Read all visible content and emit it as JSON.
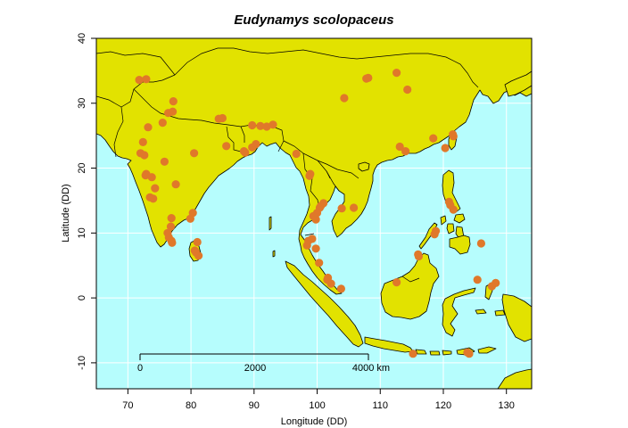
{
  "chart_data": {
    "type": "scatter",
    "title": "Eudynamys scolopaceus",
    "xlabel": "Longitude (DD)",
    "ylabel": "Latitude (DD)",
    "xlim": [
      65,
      134
    ],
    "ylim": [
      -14,
      40
    ],
    "xticks": [
      70,
      80,
      90,
      100,
      110,
      120,
      130
    ],
    "yticks": [
      -10,
      0,
      10,
      20,
      30,
      40
    ],
    "grid": true,
    "colors": {
      "ocean": "#b6fdfd",
      "land": "#e2e200",
      "points": "#e0782a",
      "border": "#000000",
      "grid": "#ffffff"
    },
    "scalebar": {
      "labels": [
        "0",
        "2000",
        "4000 km"
      ]
    },
    "points": [
      [
        71.8,
        33.6
      ],
      [
        72.9,
        33.7
      ],
      [
        72.0,
        22.3
      ],
      [
        72.6,
        22.0
      ],
      [
        72.9,
        19.1
      ],
      [
        72.8,
        18.9
      ],
      [
        73.2,
        26.3
      ],
      [
        72.4,
        24.0
      ],
      [
        73.8,
        18.6
      ],
      [
        73.5,
        15.5
      ],
      [
        74.0,
        15.3
      ],
      [
        74.3,
        16.9
      ],
      [
        75.5,
        27.0
      ],
      [
        75.8,
        21.0
      ],
      [
        76.4,
        28.5
      ],
      [
        77.1,
        28.7
      ],
      [
        77.2,
        30.3
      ],
      [
        77.6,
        17.5
      ],
      [
        76.9,
        12.3
      ],
      [
        76.8,
        11.0
      ],
      [
        76.3,
        10.0
      ],
      [
        76.5,
        9.3
      ],
      [
        76.9,
        8.8
      ],
      [
        77.0,
        8.5
      ],
      [
        80.3,
        13.1
      ],
      [
        79.9,
        12.2
      ],
      [
        80.5,
        22.3
      ],
      [
        80.6,
        7.3
      ],
      [
        80.8,
        7.0
      ],
      [
        81.2,
        6.5
      ],
      [
        81.0,
        8.6
      ],
      [
        85.0,
        27.7
      ],
      [
        84.4,
        27.6
      ],
      [
        85.6,
        23.4
      ],
      [
        88.6,
        22.4
      ],
      [
        88.4,
        22.6
      ],
      [
        89.7,
        23.2
      ],
      [
        90.3,
        23.7
      ],
      [
        89.7,
        26.6
      ],
      [
        91.0,
        26.5
      ],
      [
        92.0,
        26.4
      ],
      [
        93.0,
        26.7
      ],
      [
        96.7,
        22.2
      ],
      [
        98.9,
        19.1
      ],
      [
        98.8,
        18.8
      ],
      [
        100.4,
        13.9
      ],
      [
        100.6,
        14.2
      ],
      [
        100.0,
        13.1
      ],
      [
        99.4,
        12.6
      ],
      [
        101.0,
        14.6
      ],
      [
        99.8,
        12.1
      ],
      [
        98.6,
        8.8
      ],
      [
        99.2,
        9.1
      ],
      [
        99.8,
        7.6
      ],
      [
        98.4,
        8.1
      ],
      [
        100.3,
        5.4
      ],
      [
        101.6,
        2.8
      ],
      [
        101.7,
        3.1
      ],
      [
        102.2,
        2.2
      ],
      [
        103.8,
        1.4
      ],
      [
        103.9,
        13.8
      ],
      [
        105.8,
        13.9
      ],
      [
        104.3,
        30.8
      ],
      [
        107.8,
        33.8
      ],
      [
        108.1,
        33.9
      ],
      [
        112.6,
        34.7
      ],
      [
        114.3,
        32.1
      ],
      [
        113.1,
        23.3
      ],
      [
        114.0,
        22.6
      ],
      [
        118.4,
        24.6
      ],
      [
        120.3,
        23.1
      ],
      [
        121.6,
        24.9
      ],
      [
        121.5,
        25.2
      ],
      [
        120.9,
        14.8
      ],
      [
        121.1,
        14.3
      ],
      [
        121.6,
        13.6
      ],
      [
        118.6,
        9.8
      ],
      [
        118.8,
        10.3
      ],
      [
        116.0,
        6.7
      ],
      [
        116.1,
        6.4
      ],
      [
        112.6,
        2.4
      ],
      [
        126.0,
        8.4
      ],
      [
        125.4,
        2.8
      ],
      [
        128.3,
        2.3
      ],
      [
        127.7,
        1.8
      ],
      [
        115.2,
        -8.6
      ],
      [
        123.8,
        -8.4
      ],
      [
        124.1,
        -8.6
      ]
    ]
  }
}
